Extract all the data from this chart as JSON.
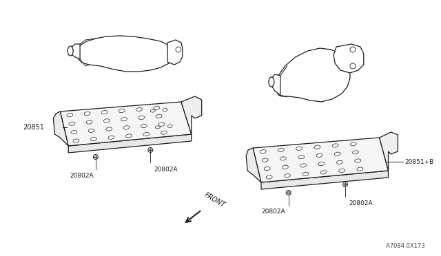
{
  "bg_color": "#ffffff",
  "line_color": "#1a1a1a",
  "diagram_ref": "A7084 0X173",
  "labels": {
    "left_shield": "20851",
    "left_bolt1": "20802A",
    "left_bolt2": "20802A",
    "right_shield": "20851+B",
    "right_bolt1": "20802A",
    "right_bolt2": "20802A"
  },
  "front_arrow_text": "FRONT"
}
